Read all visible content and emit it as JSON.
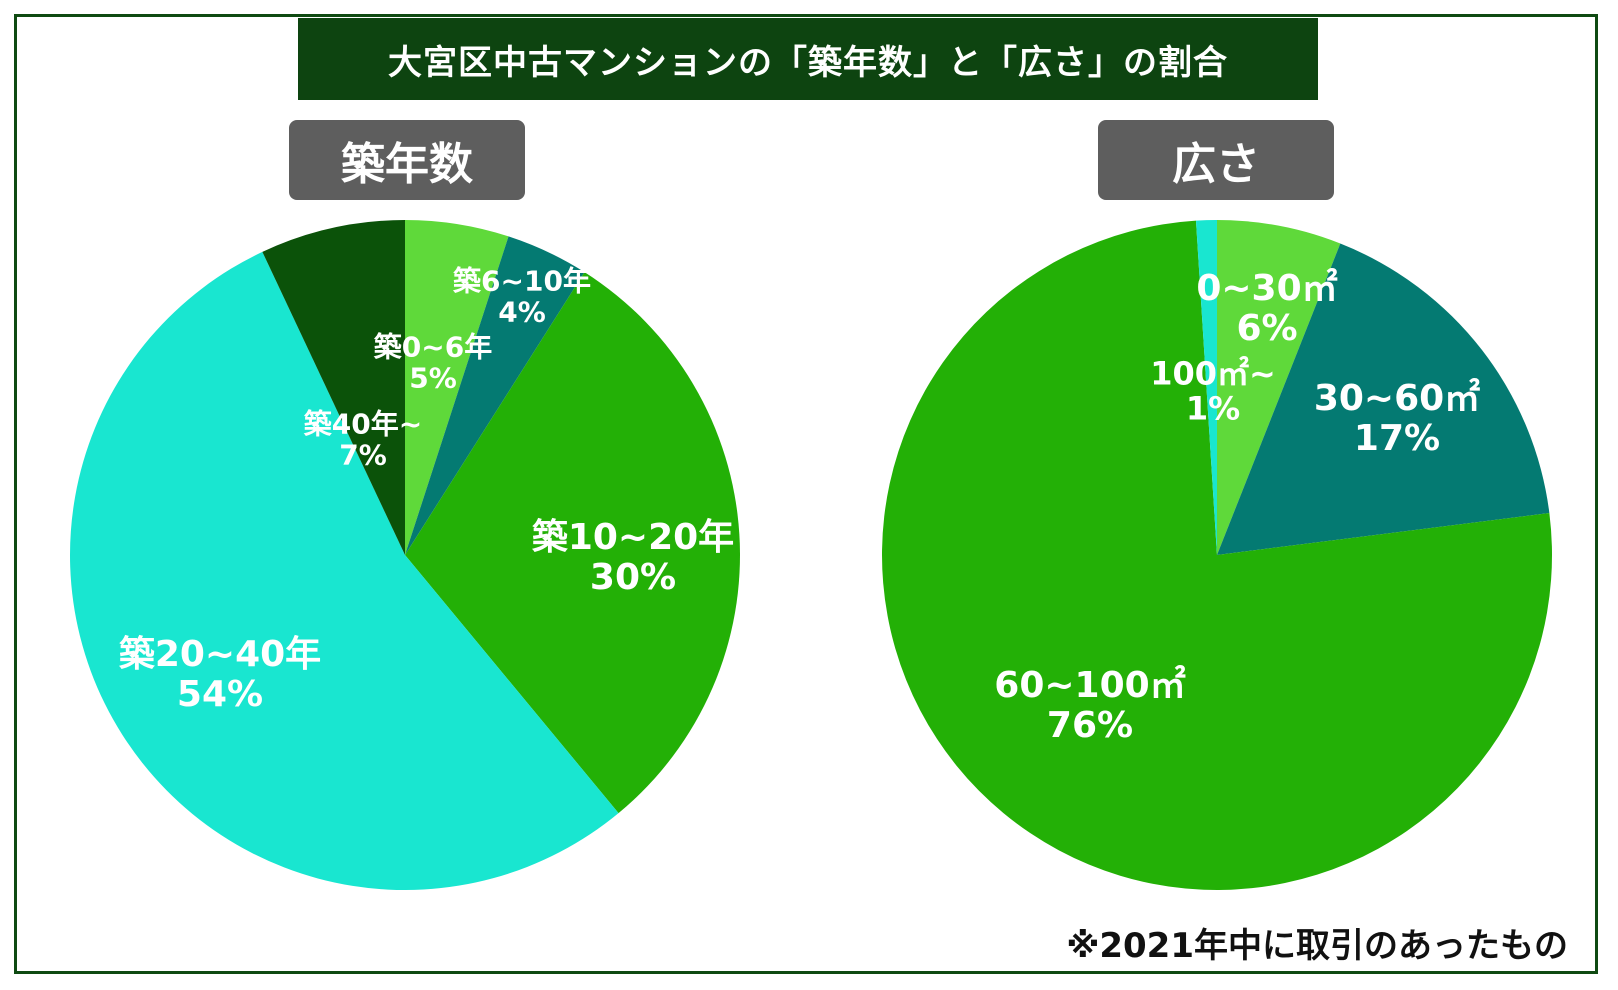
{
  "title": "大宮区中古マンションの「築年数」と「広さ」の割合",
  "footnote": "※2021年中に取引のあったもの",
  "colors": {
    "frame": "#0f4a12",
    "title_bg": "#0d4410",
    "label_bg": "#5e5e5e"
  },
  "chart_data": [
    {
      "type": "pie",
      "title": "築年数",
      "slices": [
        {
          "label": "築0~6年",
          "value": 5,
          "display": "5%",
          "color": "#5fd93a"
        },
        {
          "label": "築6~10年",
          "value": 4,
          "display": "4%",
          "color": "#047a72"
        },
        {
          "label": "築10~20年",
          "value": 30,
          "display": "30%",
          "color": "#23b006"
        },
        {
          "label": "築20~40年",
          "value": 54,
          "display": "54%",
          "color": "#19e6d0"
        },
        {
          "label": "築40年~",
          "value": 7,
          "display": "7%",
          "color": "#0b5209"
        }
      ]
    },
    {
      "type": "pie",
      "title": "広さ",
      "slices": [
        {
          "label": "0~30㎡",
          "value": 6,
          "display": "6%",
          "color": "#5fd93a"
        },
        {
          "label": "30~60㎡",
          "value": 17,
          "display": "17%",
          "color": "#047a72"
        },
        {
          "label": "60~100㎡",
          "value": 76,
          "display": "76%",
          "color": "#23b006"
        },
        {
          "label": "100㎡~",
          "value": 1,
          "display": "1%",
          "color": "#19e6d0"
        }
      ]
    }
  ]
}
